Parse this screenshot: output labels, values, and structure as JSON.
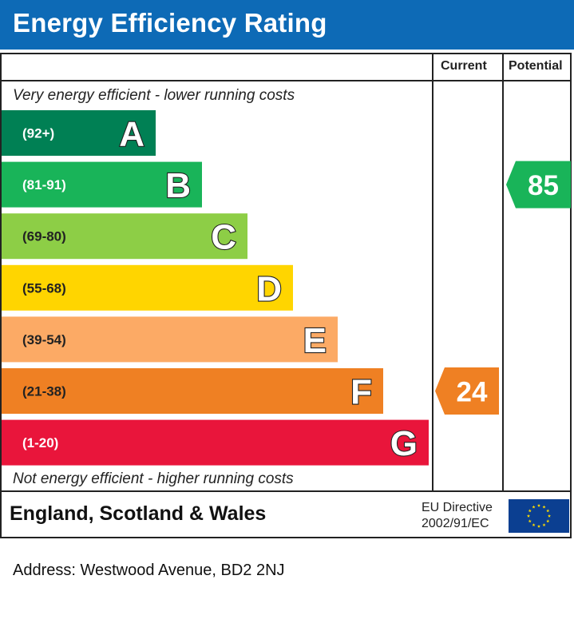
{
  "header": {
    "title": "Energy Efficiency Rating"
  },
  "columns": {
    "current": "Current",
    "potential": "Potential"
  },
  "captions": {
    "top": "Very energy efficient - lower running costs",
    "bottom": "Not energy efficient - higher running costs"
  },
  "footer": {
    "country": "England, Scotland & Wales",
    "directive_line1": "EU Directive",
    "directive_line2": "2002/91/EC"
  },
  "address": "Address: Westwood Avenue, BD2 2NJ",
  "chart_data": {
    "type": "bar",
    "title": "Energy Efficiency Rating",
    "bands": [
      {
        "letter": "A",
        "range": "(92+)",
        "min": 92,
        "max": 100,
        "color": "#008054"
      },
      {
        "letter": "B",
        "range": "(81-91)",
        "min": 81,
        "max": 91,
        "color": "#19b459"
      },
      {
        "letter": "C",
        "range": "(69-80)",
        "min": 69,
        "max": 80,
        "color": "#8dce46"
      },
      {
        "letter": "D",
        "range": "(55-68)",
        "min": 55,
        "max": 68,
        "color": "#ffd500"
      },
      {
        "letter": "E",
        "range": "(39-54)",
        "min": 39,
        "max": 54,
        "color": "#fcaa65"
      },
      {
        "letter": "F",
        "range": "(21-38)",
        "min": 21,
        "max": 38,
        "color": "#ef8023"
      },
      {
        "letter": "G",
        "range": "(1-20)",
        "min": 1,
        "max": 20,
        "color": "#e9153b"
      }
    ],
    "current": {
      "value": 24,
      "band": "F",
      "color": "#ef8023"
    },
    "potential": {
      "value": 85,
      "band": "B",
      "color": "#19b459"
    }
  }
}
